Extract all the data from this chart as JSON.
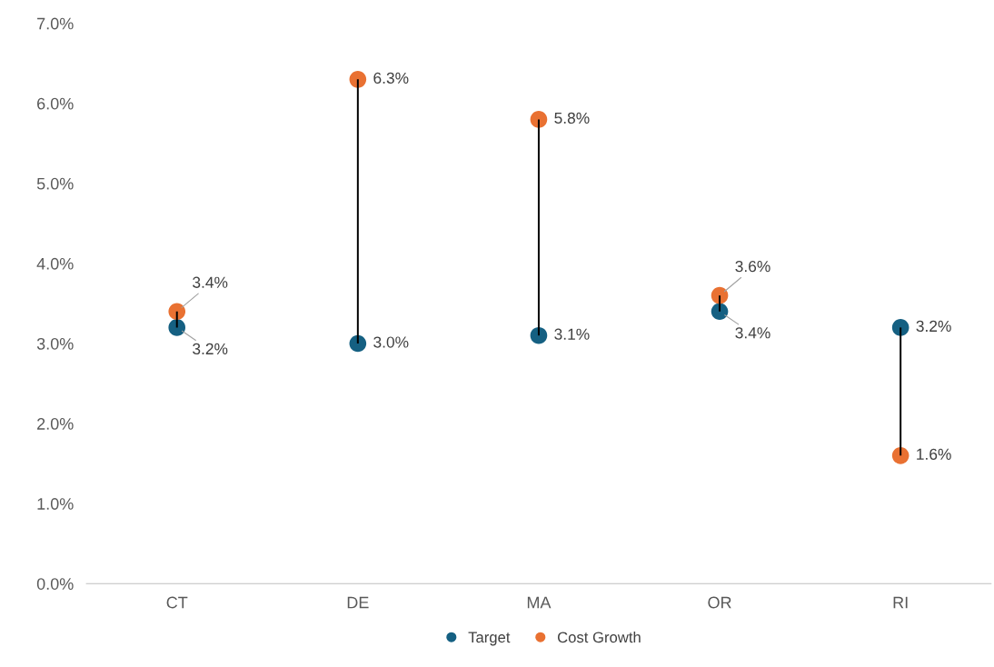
{
  "chart_data": {
    "type": "scatter",
    "categories": [
      "CT",
      "DE",
      "MA",
      "OR",
      "RI"
    ],
    "series": [
      {
        "type": "bar",
        "color": "#000000",
        "base": [
          3.2,
          3.0,
          3.1,
          3.4,
          1.6
        ],
        "values": [
          0.2,
          3.3,
          2.7,
          0.2,
          1.6
        ]
      },
      {
        "name": "Target",
        "color": "#156082",
        "values": [
          3.2,
          3.0,
          3.1,
          3.4,
          3.2
        ],
        "value_labels": [
          "3.2%",
          "3.0%",
          "3.1%",
          "3.4%",
          "3.2%"
        ]
      },
      {
        "name": "Cost Growth",
        "color": "#e97132",
        "values": [
          3.4,
          6.3,
          5.8,
          3.6,
          1.6
        ],
        "value_labels": [
          "3.4%",
          "6.3%",
          "5.8%",
          "3.6%",
          "1.6%"
        ]
      }
    ],
    "ylim": [
      0,
      7
    ],
    "yticks": [
      {
        "value": 0,
        "label": "0.0%"
      },
      {
        "value": 1,
        "label": "1.0%"
      },
      {
        "value": 2,
        "label": "2.0%"
      },
      {
        "value": 3,
        "label": "3.0%"
      },
      {
        "value": 4,
        "label": "4.0%"
      },
      {
        "value": 5,
        "label": "5.0%"
      },
      {
        "value": 6,
        "label": "6.0%"
      },
      {
        "value": 7,
        "label": "7.0%"
      }
    ],
    "grid": false,
    "legend": "bottom",
    "marker": "circle"
  }
}
